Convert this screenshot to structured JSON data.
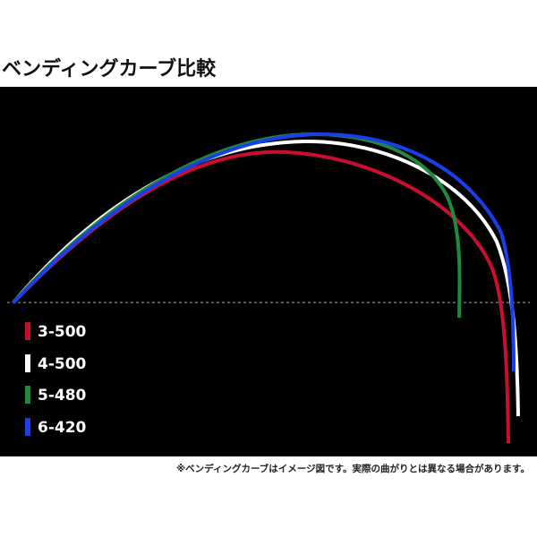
{
  "title": "ベンディングカーブ比較",
  "items": [
    {
      "name": "3-500",
      "color": "#c8102e"
    },
    {
      "name": "4-500",
      "color": "#ffffff"
    },
    {
      "name": "5-480",
      "color": "#1f8a3c"
    },
    {
      "name": "6-420",
      "color": "#1a3ee8"
    }
  ],
  "note": "※ベンディングカーブはイメージ図です。実際の曲がりとは異なる場合があります。"
}
